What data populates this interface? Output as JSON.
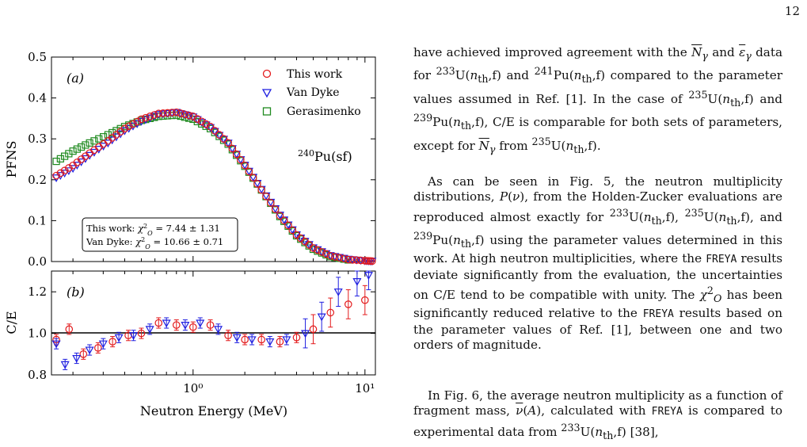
{
  "page": {
    "number": "12"
  },
  "figure": {
    "panel_a": {
      "tag": "(a)",
      "ylabel": "PFNS",
      "yticks": [
        "0.0",
        "0.1",
        "0.2",
        "0.3",
        "0.4",
        "0.5"
      ],
      "reaction_label": "240Pu(sf)",
      "legend": [
        "This work",
        "Van Dyke",
        "Gerasimenko"
      ],
      "chi_lines": [
        "This work: χ²_O = 7.44 ± 1.31",
        "Van Dyke: χ²_O = 10.66 ± 0.71"
      ]
    },
    "panel_b": {
      "tag": "(b)",
      "ylabel": "C/E",
      "yticks": [
        "0.8",
        "1.0",
        "1.2"
      ]
    },
    "xlabel": "Neutron Energy (MeV)",
    "xticks": [
      "10⁰",
      "10¹"
    ]
  },
  "chart_data": [
    {
      "type": "scatter",
      "panel": "(a)",
      "xlabel": "Neutron Energy (MeV)",
      "ylabel": "PFNS",
      "xscale": "log",
      "xlim": [
        0.15,
        11.5
      ],
      "ylim": [
        0.0,
        0.5
      ],
      "legend_position": "top-right",
      "series": [
        {
          "name": "This work",
          "marker": "circle",
          "color": "#e31a1c",
          "x": [
            0.16,
            0.2,
            0.25,
            0.32,
            0.4,
            0.5,
            0.63,
            0.8,
            1.0,
            1.26,
            1.6,
            2.0,
            2.5,
            3.2,
            4.0,
            5.0,
            6.3,
            8.0,
            10.0,
            11.0
          ],
          "y": [
            0.21,
            0.235,
            0.265,
            0.295,
            0.325,
            0.348,
            0.362,
            0.365,
            0.355,
            0.33,
            0.29,
            0.235,
            0.175,
            0.112,
            0.065,
            0.033,
            0.014,
            0.005,
            0.002,
            0.001
          ]
        },
        {
          "name": "Van Dyke",
          "marker": "triangle-down",
          "color": "#1f1fe0",
          "x": [
            0.16,
            0.2,
            0.25,
            0.32,
            0.4,
            0.5,
            0.63,
            0.8,
            1.0,
            1.26,
            1.6,
            2.0,
            2.5,
            3.2,
            4.0,
            5.0,
            6.3,
            8.0,
            10.0,
            11.0
          ],
          "y": [
            0.205,
            0.228,
            0.26,
            0.29,
            0.32,
            0.343,
            0.36,
            0.365,
            0.354,
            0.328,
            0.29,
            0.236,
            0.177,
            0.114,
            0.066,
            0.034,
            0.015,
            0.006,
            0.002,
            0.001
          ]
        },
        {
          "name": "Gerasimenko",
          "marker": "square",
          "color": "#1f8a1f",
          "x": [
            0.16,
            0.2,
            0.25,
            0.32,
            0.4,
            0.5,
            0.63,
            0.8,
            1.0,
            1.26,
            1.6,
            2.0,
            2.5,
            3.2,
            4.0,
            5.0,
            6.3,
            8.0
          ],
          "y": [
            0.245,
            0.27,
            0.29,
            0.31,
            0.33,
            0.345,
            0.355,
            0.358,
            0.348,
            0.325,
            0.287,
            0.233,
            0.175,
            0.11,
            0.063,
            0.03,
            0.012,
            0.004
          ]
        }
      ]
    },
    {
      "type": "scatter",
      "panel": "(b)",
      "xlabel": "Neutron Energy (MeV)",
      "ylabel": "C/E",
      "xscale": "log",
      "xlim": [
        0.15,
        11.5
      ],
      "ylim": [
        0.8,
        1.3
      ],
      "reference_line": 1.0,
      "series": [
        {
          "name": "This work",
          "marker": "circle",
          "color": "#e31a1c",
          "x": [
            0.16,
            0.19,
            0.23,
            0.28,
            0.34,
            0.42,
            0.5,
            0.63,
            0.8,
            1.0,
            1.26,
            1.6,
            2.0,
            2.5,
            3.2,
            4.0,
            5.0,
            6.3,
            8.0,
            10.0
          ],
          "y": [
            0.97,
            1.02,
            0.9,
            0.93,
            0.96,
            0.99,
            1.0,
            1.05,
            1.04,
            1.03,
            1.04,
            0.99,
            0.97,
            0.97,
            0.96,
            0.98,
            1.02,
            1.1,
            1.14,
            1.16
          ]
        },
        {
          "name": "Van Dyke",
          "marker": "triangle-down",
          "color": "#1f1fe0",
          "x": [
            0.16,
            0.18,
            0.21,
            0.25,
            0.3,
            0.37,
            0.45,
            0.56,
            0.7,
            0.9,
            1.1,
            1.4,
            1.8,
            2.2,
            2.8,
            3.5,
            4.5,
            5.6,
            7.0,
            9.0,
            10.5
          ],
          "y": [
            0.95,
            0.85,
            0.88,
            0.92,
            0.95,
            0.98,
            0.99,
            1.02,
            1.05,
            1.04,
            1.05,
            1.02,
            0.98,
            0.97,
            0.96,
            0.97,
            1.0,
            1.08,
            1.2,
            1.25,
            1.28
          ]
        }
      ]
    }
  ],
  "text": {
    "para1": "have achieved improved agreement with the N̄γ and ε̄γ data for ²³³U(nth,f) and ²⁴¹Pu(nth,f) compared to the parameter values assumed in Ref. [1]. In the case of ²³⁵U(nth,f) and ²³⁹Pu(nth,f), C/E is comparable for both sets of parameters, except for N̄γ from ²³⁵U(nth,f).",
    "para2": "As can be seen in Fig. 5, the neutron multiplicity distributions, P(ν), from the Holden-Zucker evaluations are reproduced almost exactly for ²³³U(nth,f), ²³⁵U(nth,f), and ²³⁹Pu(nth,f) using the parameter values determined in this work. At high neutron multiplicities, where the FREYA results deviate significantly from the evaluation, the uncertainties on C/E tend to be compatible with unity. The χ²O has been significantly reduced relative to the FREYA results based on the parameter values of Ref. [1], between one and two orders of magnitude.",
    "para3": "In Fig. 6, the average neutron multiplicity as a function of fragment mass, ν̄(A), calculated with FREYA is compared to experimental data from ²³³U(nth,f) [38],"
  }
}
